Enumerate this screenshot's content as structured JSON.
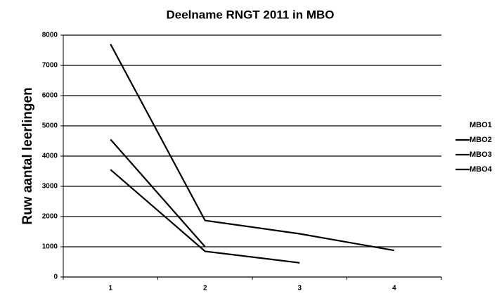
{
  "chart_data": {
    "type": "line",
    "title": "Deelname RNGT 2011 in MBO",
    "y_label": "Ruw aantal leerlingen",
    "categories": [
      "1",
      "2",
      "3",
      "4"
    ],
    "series": [
      {
        "name": "MBO1",
        "color": "none",
        "values": [
          null,
          null,
          null,
          null
        ]
      },
      {
        "name": "MBO2",
        "color": "#000000",
        "values": [
          7700,
          1870,
          1430,
          880
        ]
      },
      {
        "name": "MBO3",
        "color": "#000000",
        "values": [
          4550,
          1000,
          null,
          null
        ]
      },
      {
        "name": "MBO4",
        "color": "#000000",
        "values": [
          3550,
          850,
          470,
          null
        ]
      }
    ],
    "ylim": [
      0,
      8000
    ],
    "yticks": [
      0,
      1000,
      2000,
      3000,
      4000,
      5000,
      6000,
      7000,
      8000
    ],
    "grid": true,
    "legend": "right"
  }
}
